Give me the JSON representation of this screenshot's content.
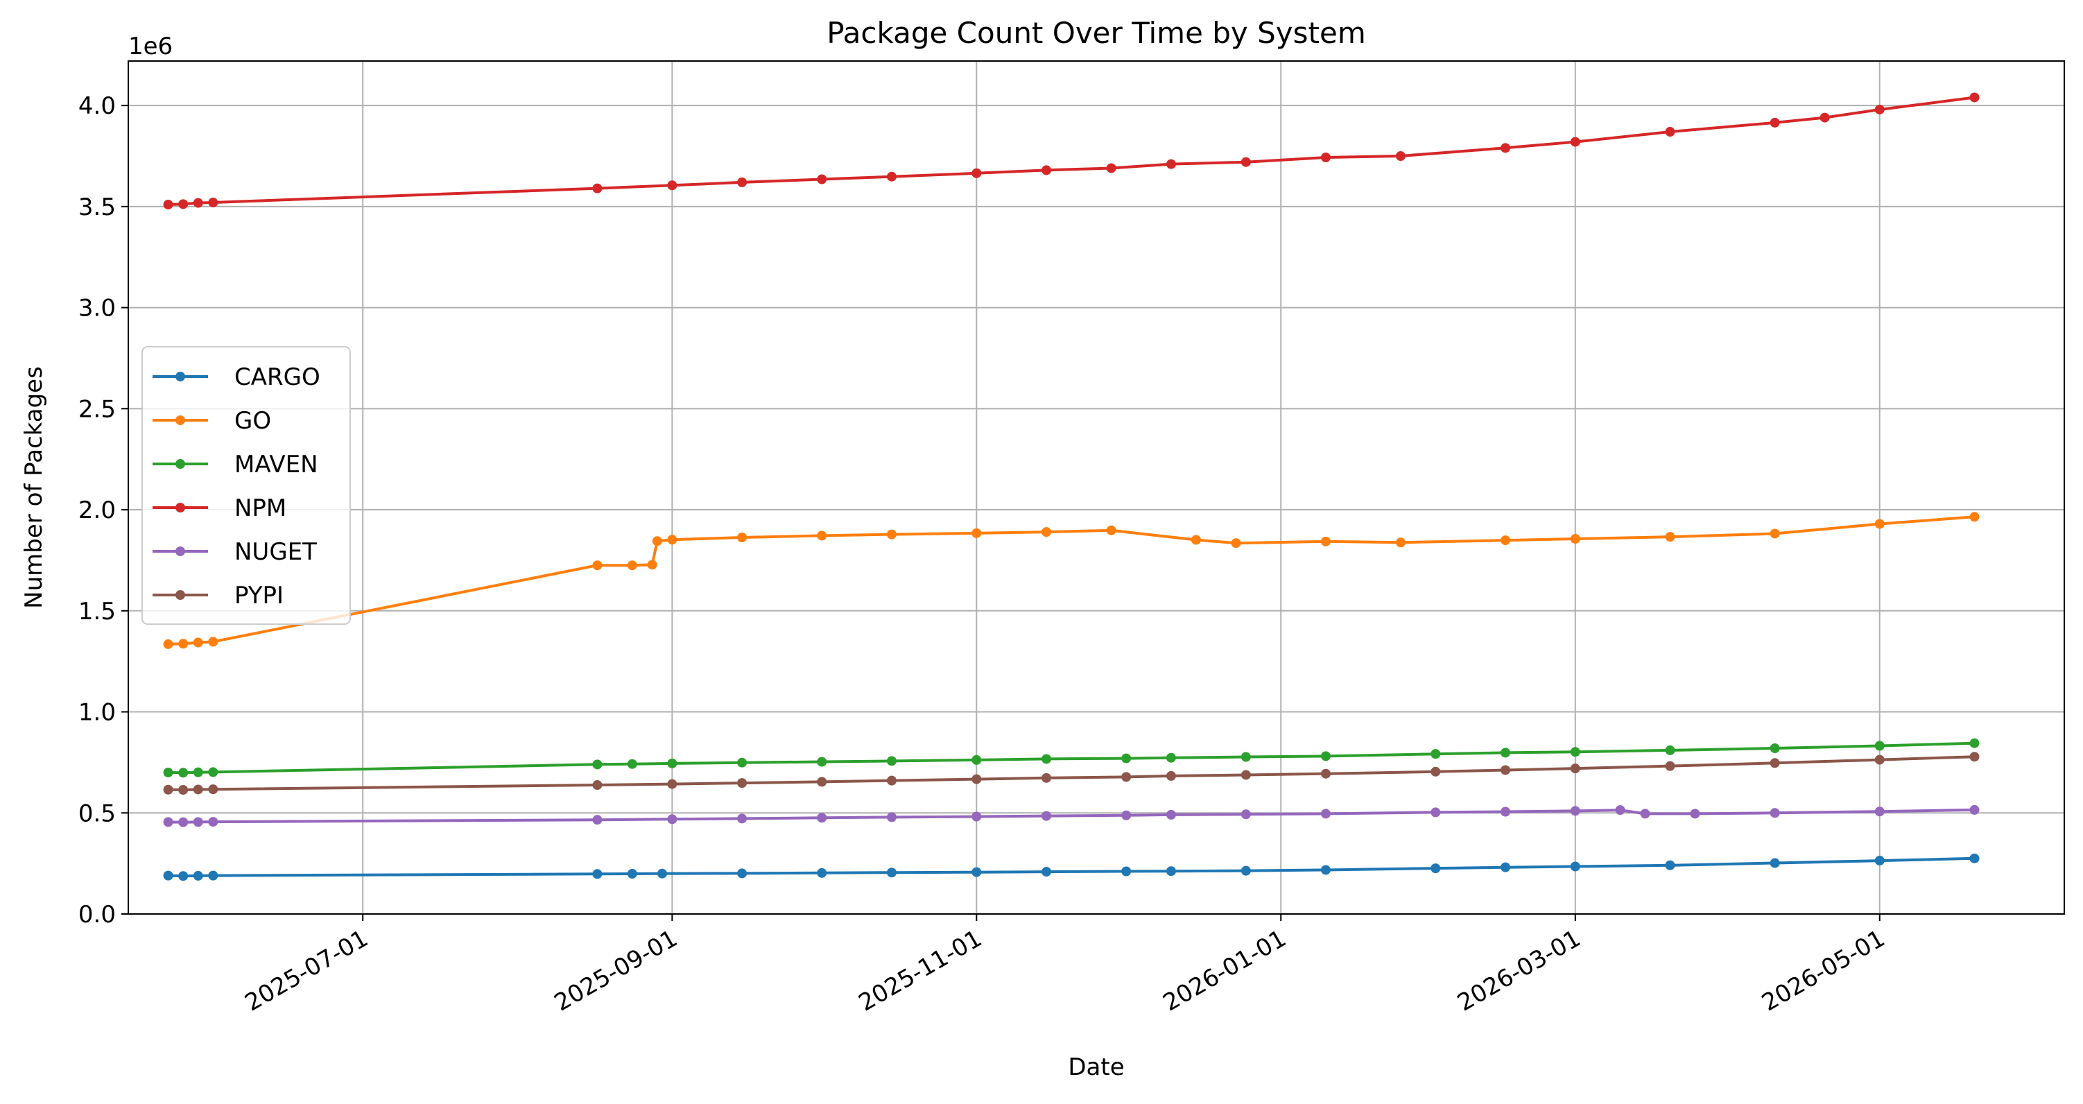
{
  "chart_data": {
    "type": "line",
    "title": "Package Count Over Time by System",
    "xlabel": "Date",
    "ylabel": "Number of Packages",
    "y_multiplier_label": "1e6",
    "x_axis_type": "date",
    "xlim": [
      "2025-05-15",
      "2026-06-07"
    ],
    "ylim": [
      0,
      4.22
    ],
    "x_ticks": [
      "2025-07-01",
      "2025-09-01",
      "2025-11-01",
      "2026-01-01",
      "2026-03-01",
      "2026-05-01"
    ],
    "y_ticks": [
      0.0,
      0.5,
      1.0,
      1.5,
      2.0,
      2.5,
      3.0,
      3.5,
      4.0
    ],
    "y_tick_labels": [
      "0.0",
      "0.5",
      "1.0",
      "1.5",
      "2.0",
      "2.5",
      "3.0",
      "3.5",
      "4.0"
    ],
    "grid": true,
    "legend_position": "center-left",
    "colors": {
      "axis": "#000000",
      "grid": "#b0b0b0",
      "legend_border": "#cccccc"
    },
    "series": [
      {
        "name": "CARGO",
        "color": "#1f77b4",
        "dates": [
          "2025-05-23",
          "2025-05-26",
          "2025-05-29",
          "2025-06-01",
          "2025-08-17",
          "2025-08-24",
          "2025-08-30",
          "2025-09-15",
          "2025-10-01",
          "2025-10-15",
          "2025-11-01",
          "2025-11-15",
          "2025-12-01",
          "2025-12-10",
          "2025-12-25",
          "2026-01-10",
          "2026-02-01",
          "2026-02-15",
          "2026-03-01",
          "2026-03-20",
          "2026-04-10",
          "2026-05-01",
          "2026-05-20"
        ],
        "values": [
          0.19,
          0.188,
          0.189,
          0.19,
          0.198,
          0.199,
          0.2,
          0.201,
          0.203,
          0.205,
          0.207,
          0.209,
          0.211,
          0.212,
          0.214,
          0.218,
          0.226,
          0.231,
          0.235,
          0.241,
          0.252,
          0.264,
          0.275
        ]
      },
      {
        "name": "GO",
        "color": "#ff7f0e",
        "dates": [
          "2025-05-23",
          "2025-05-26",
          "2025-05-29",
          "2025-06-01",
          "2025-08-17",
          "2025-08-24",
          "2025-08-28",
          "2025-08-29",
          "2025-09-01",
          "2025-09-15",
          "2025-10-01",
          "2025-10-15",
          "2025-11-01",
          "2025-11-15",
          "2025-11-28",
          "2025-12-15",
          "2025-12-23",
          "2026-01-10",
          "2026-01-25",
          "2026-02-15",
          "2026-03-01",
          "2026-03-20",
          "2026-04-10",
          "2026-05-01",
          "2026-05-20"
        ],
        "values": [
          1.335,
          1.337,
          1.343,
          1.347,
          1.725,
          1.725,
          1.728,
          1.845,
          1.852,
          1.863,
          1.872,
          1.878,
          1.884,
          1.89,
          1.898,
          1.851,
          1.835,
          1.843,
          1.838,
          1.849,
          1.856,
          1.866,
          1.882,
          1.93,
          1.965
        ]
      },
      {
        "name": "MAVEN",
        "color": "#2ca02c",
        "dates": [
          "2025-05-23",
          "2025-05-26",
          "2025-05-29",
          "2025-06-01",
          "2025-08-17",
          "2025-08-24",
          "2025-09-01",
          "2025-09-15",
          "2025-10-01",
          "2025-10-15",
          "2025-11-01",
          "2025-11-15",
          "2025-12-01",
          "2025-12-10",
          "2025-12-25",
          "2026-01-10",
          "2026-02-01",
          "2026-02-15",
          "2026-03-01",
          "2026-03-20",
          "2026-04-10",
          "2026-05-01",
          "2026-05-20"
        ],
        "values": [
          0.7,
          0.699,
          0.701,
          0.702,
          0.74,
          0.742,
          0.745,
          0.749,
          0.753,
          0.757,
          0.762,
          0.767,
          0.77,
          0.773,
          0.777,
          0.781,
          0.792,
          0.798,
          0.802,
          0.81,
          0.82,
          0.832,
          0.845
        ]
      },
      {
        "name": "NPM",
        "color": "#d62728",
        "dates": [
          "2025-05-23",
          "2025-05-26",
          "2025-05-29",
          "2025-06-01",
          "2025-08-17",
          "2025-09-01",
          "2025-09-15",
          "2025-10-01",
          "2025-10-15",
          "2025-11-01",
          "2025-11-15",
          "2025-11-28",
          "2025-12-10",
          "2025-12-25",
          "2026-01-10",
          "2026-01-25",
          "2026-02-15",
          "2026-03-01",
          "2026-03-20",
          "2026-04-10",
          "2026-04-20",
          "2026-05-01",
          "2026-05-20"
        ],
        "values": [
          3.51,
          3.512,
          3.518,
          3.52,
          3.59,
          3.605,
          3.62,
          3.635,
          3.648,
          3.665,
          3.68,
          3.69,
          3.71,
          3.72,
          3.743,
          3.75,
          3.79,
          3.82,
          3.87,
          3.915,
          3.94,
          3.98,
          4.04
        ]
      },
      {
        "name": "NUGET",
        "color": "#9467bd",
        "dates": [
          "2025-05-23",
          "2025-05-26",
          "2025-05-29",
          "2025-06-01",
          "2025-08-17",
          "2025-09-01",
          "2025-09-15",
          "2025-10-01",
          "2025-10-15",
          "2025-11-01",
          "2025-11-15",
          "2025-12-01",
          "2025-12-10",
          "2025-12-25",
          "2026-01-10",
          "2026-02-01",
          "2026-02-15",
          "2026-03-01",
          "2026-03-10",
          "2026-03-15",
          "2026-03-25",
          "2026-04-10",
          "2026-05-01",
          "2026-05-20"
        ],
        "values": [
          0.455,
          0.454,
          0.455,
          0.456,
          0.466,
          0.469,
          0.472,
          0.476,
          0.479,
          0.482,
          0.485,
          0.488,
          0.491,
          0.493,
          0.496,
          0.503,
          0.506,
          0.51,
          0.514,
          0.496,
          0.496,
          0.5,
          0.507,
          0.515
        ]
      },
      {
        "name": "PYPI",
        "color": "#8c564b",
        "dates": [
          "2025-05-23",
          "2025-05-26",
          "2025-05-29",
          "2025-06-01",
          "2025-08-17",
          "2025-09-01",
          "2025-09-15",
          "2025-10-01",
          "2025-10-15",
          "2025-11-01",
          "2025-11-15",
          "2025-12-01",
          "2025-12-10",
          "2025-12-25",
          "2026-01-10",
          "2026-02-01",
          "2026-02-15",
          "2026-03-01",
          "2026-03-20",
          "2026-04-10",
          "2026-05-01",
          "2026-05-20"
        ],
        "values": [
          0.615,
          0.614,
          0.616,
          0.617,
          0.638,
          0.643,
          0.648,
          0.654,
          0.66,
          0.667,
          0.673,
          0.678,
          0.683,
          0.688,
          0.694,
          0.704,
          0.712,
          0.72,
          0.732,
          0.747,
          0.763,
          0.778
        ]
      }
    ]
  }
}
